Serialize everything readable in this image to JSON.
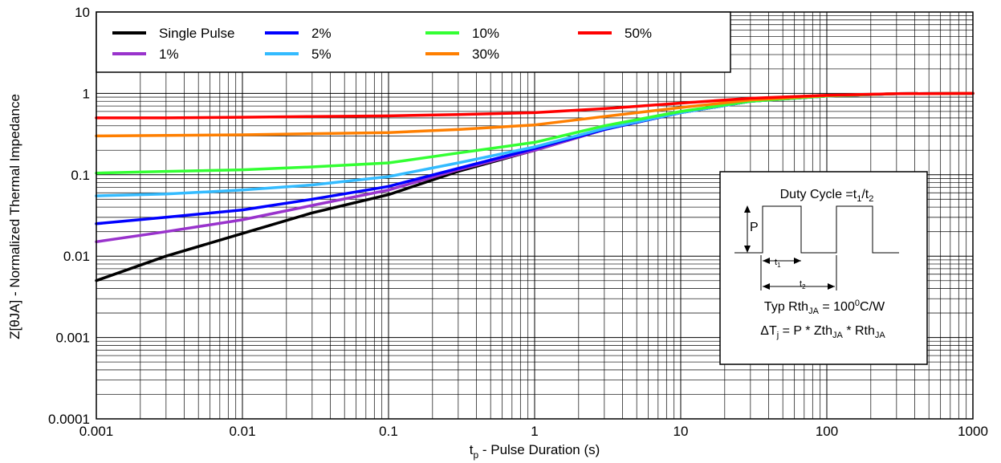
{
  "chart_data": {
    "type": "line",
    "x_scale": "log",
    "y_scale": "log",
    "xlim": [
      0.001,
      1000
    ],
    "ylim": [
      0.0001,
      10
    ],
    "grid": true,
    "x_ticks": [
      "0.001",
      "0.01",
      "0.1",
      "1",
      "10",
      "100",
      "1000"
    ],
    "y_ticks": [
      "0.0001",
      "0.001",
      "0.01",
      "0.1",
      "1",
      "10"
    ],
    "xlabel": {
      "main": "t",
      "sub": "p",
      "rest": " - Pulse Duration (s)"
    },
    "ylabel": "Z[θJA] - Normalized Thermal Impedance",
    "legend_position": "top-left",
    "series": [
      {
        "name": "Single Pulse",
        "color": "#000000",
        "x": [
          0.001,
          0.003,
          0.01,
          0.03,
          0.1,
          0.3,
          1,
          3,
          10,
          30,
          100,
          300,
          1000
        ],
        "y": [
          0.005,
          0.01,
          0.019,
          0.034,
          0.057,
          0.11,
          0.2,
          0.36,
          0.58,
          0.8,
          0.93,
          0.99,
          1.0
        ]
      },
      {
        "name": "1%",
        "color": "#9933cc",
        "x": [
          0.001,
          0.003,
          0.01,
          0.03,
          0.1,
          0.3,
          1,
          3,
          10,
          30,
          100,
          300,
          1000
        ],
        "y": [
          0.015,
          0.02,
          0.028,
          0.042,
          0.065,
          0.115,
          0.2,
          0.36,
          0.58,
          0.8,
          0.93,
          0.99,
          1.0
        ]
      },
      {
        "name": "2%",
        "color": "#0000ff",
        "x": [
          0.001,
          0.003,
          0.01,
          0.03,
          0.1,
          0.3,
          1,
          3,
          10,
          30,
          100,
          300,
          1000
        ],
        "y": [
          0.025,
          0.03,
          0.037,
          0.05,
          0.072,
          0.12,
          0.21,
          0.36,
          0.58,
          0.8,
          0.93,
          0.99,
          1.0
        ]
      },
      {
        "name": "5%",
        "color": "#33bbff",
        "x": [
          0.001,
          0.003,
          0.01,
          0.03,
          0.1,
          0.3,
          1,
          3,
          10,
          30,
          100,
          300,
          1000
        ],
        "y": [
          0.055,
          0.058,
          0.065,
          0.075,
          0.095,
          0.14,
          0.22,
          0.37,
          0.58,
          0.8,
          0.93,
          0.99,
          1.0
        ]
      },
      {
        "name": "10%",
        "color": "#33ff33",
        "x": [
          0.001,
          0.003,
          0.01,
          0.03,
          0.1,
          0.3,
          1,
          3,
          10,
          30,
          100,
          300,
          1000
        ],
        "y": [
          0.105,
          0.11,
          0.115,
          0.125,
          0.14,
          0.185,
          0.25,
          0.4,
          0.6,
          0.8,
          0.93,
          0.99,
          1.0
        ]
      },
      {
        "name": "30%",
        "color": "#ff7f00",
        "x": [
          0.001,
          0.003,
          0.01,
          0.03,
          0.1,
          0.3,
          1,
          3,
          10,
          30,
          100,
          300,
          1000
        ],
        "y": [
          0.3,
          0.305,
          0.31,
          0.32,
          0.33,
          0.36,
          0.41,
          0.52,
          0.67,
          0.83,
          0.94,
          0.99,
          1.0
        ]
      },
      {
        "name": "50%",
        "color": "#ff0000",
        "x": [
          0.001,
          0.003,
          0.01,
          0.03,
          0.1,
          0.3,
          1,
          3,
          10,
          30,
          100,
          300,
          1000
        ],
        "y": [
          0.5,
          0.5,
          0.51,
          0.52,
          0.53,
          0.55,
          0.58,
          0.65,
          0.76,
          0.87,
          0.95,
          0.99,
          1.0
        ]
      }
    ],
    "inset": {
      "title": {
        "main": "Duty Cycle =t",
        "sub1": "1",
        "slash": "/t",
        "sub2": "2"
      },
      "p_label": "P",
      "t1_label": {
        "main": "t",
        "sub": "1"
      },
      "t2_label": {
        "main": "t",
        "sub": "2"
      },
      "rth_line": {
        "main": "Typ Rth",
        "sub": "JA",
        "mid": " = 100",
        "sup": "0",
        "end": "C/W"
      },
      "dt_line": {
        "a": "ΔT",
        "a_sub": "j",
        "b": " = P * Zth",
        "b_sub": "JA",
        "c": " * Rth",
        "c_sub": "JA"
      }
    }
  }
}
